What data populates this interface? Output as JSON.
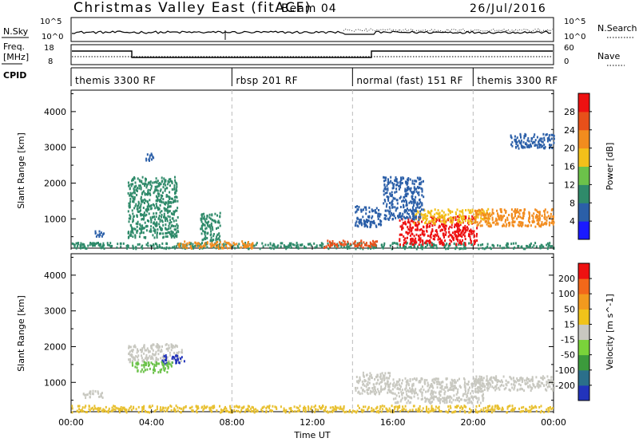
{
  "header": {
    "title": "Christmas Valley East (fitACF)",
    "beam": "Beam 04",
    "date": "26/Jul/2016"
  },
  "status_panels": {
    "nsky_label": "N.Sky",
    "nsky_ticks": [
      "10^5",
      "10^0"
    ],
    "nsearch_label": "N.Search",
    "nsearch_ticks": [
      "10^5",
      "10^0"
    ],
    "freq_label": "Freq.",
    "freq_unit": "[MHz]",
    "freq_ticks": [
      "18",
      "8"
    ],
    "nave_label": "Nave",
    "nave_ticks": [
      "60",
      "0"
    ],
    "cpid_label": "CPID",
    "cpid_segments": [
      {
        "label": "themis 3300 RF",
        "start_h": 0,
        "end_h": 8
      },
      {
        "label": "rbsp 201 RF",
        "start_h": 8,
        "end_h": 14
      },
      {
        "label": "normal (fast) 151 RF",
        "start_h": 14,
        "end_h": 20
      },
      {
        "label": "themis 3300 RF",
        "start_h": 20,
        "end_h": 24
      }
    ]
  },
  "chart_data": [
    {
      "type": "heatmap",
      "parameter": "Power",
      "xlabel": "",
      "ylabel": "Slant Range [km]",
      "colorbar_label": "Power [dB]",
      "colorbar_ticks": [
        4,
        8,
        12,
        16,
        20,
        24,
        28
      ],
      "colorbar_colors": [
        "#1a1aff",
        "#2b5fa8",
        "#2f8a6a",
        "#6cc24a",
        "#f3c01a",
        "#f28c1e",
        "#e8501a",
        "#ee1111"
      ],
      "xlim_h": [
        0,
        24
      ],
      "ylim": [
        180,
        4600
      ],
      "yticks": [
        1000,
        2000,
        3000,
        4000
      ],
      "mode_boundaries_h": [
        8,
        14,
        20
      ],
      "scatter_regions": [
        {
          "t0": 0.0,
          "t1": 24.0,
          "r0": 190,
          "r1": 360,
          "level": 2
        },
        {
          "t0": 5.3,
          "t1": 9.0,
          "r0": 200,
          "r1": 400,
          "level": 5
        },
        {
          "t0": 12.5,
          "t1": 15.2,
          "r0": 220,
          "r1": 420,
          "level": 6
        },
        {
          "t0": 14.1,
          "t1": 15.4,
          "r0": 800,
          "r1": 1400,
          "level": 1
        },
        {
          "t0": 1.0,
          "t1": 1.6,
          "r0": 520,
          "r1": 700,
          "level": 1
        },
        {
          "t0": 2.8,
          "t1": 5.3,
          "r0": 500,
          "r1": 2200,
          "level": 2
        },
        {
          "t0": 3.6,
          "t1": 4.1,
          "r0": 2650,
          "r1": 2850,
          "level": 1
        },
        {
          "t0": 6.4,
          "t1": 7.4,
          "r0": 400,
          "r1": 1200,
          "level": 2
        },
        {
          "t0": 16.3,
          "t1": 20.2,
          "r0": 300,
          "r1": 1100,
          "level": 7
        },
        {
          "t0": 17.0,
          "t1": 20.8,
          "r0": 900,
          "r1": 1300,
          "level": 4
        },
        {
          "t0": 20.0,
          "t1": 24.0,
          "r0": 800,
          "r1": 1300,
          "level": 5
        },
        {
          "t0": 21.8,
          "t1": 24.0,
          "r0": 3000,
          "r1": 3400,
          "level": 1
        },
        {
          "t0": 15.5,
          "t1": 17.5,
          "r0": 1000,
          "r1": 2200,
          "level": 1
        }
      ]
    },
    {
      "type": "heatmap",
      "parameter": "Velocity",
      "xlabel": "Time UT",
      "ylabel": "Slant Range [km]",
      "colorbar_label": "Velocity [m s^-1]",
      "colorbar_ticks": [
        200,
        100,
        50,
        15,
        -15,
        -50,
        -100,
        -200
      ],
      "colorbar_colors": [
        "#2233bb",
        "#2b6f8a",
        "#3c9a3c",
        "#7ad33a",
        "#c8c8c0",
        "#f0c31a",
        "#f29a1e",
        "#f2681a",
        "#ee1111"
      ],
      "xlim_h": [
        0,
        24
      ],
      "ylim": [
        180,
        4600
      ],
      "yticks": [
        1000,
        2000,
        3000,
        4000
      ],
      "xticks": [
        "00:00",
        "04:00",
        "08:00",
        "12:00",
        "16:00",
        "20:00",
        "00:00"
      ],
      "mode_boundaries_h": [
        8,
        14,
        20
      ],
      "scatter_regions": [
        {
          "t0": 0.0,
          "t1": 24.0,
          "r0": 190,
          "r1": 380,
          "cls": "lowpos"
        },
        {
          "t0": 0.5,
          "t1": 1.6,
          "r0": 600,
          "r1": 800,
          "cls": "gs"
        },
        {
          "t0": 2.8,
          "t1": 5.5,
          "r0": 1600,
          "r1": 2100,
          "cls": "gs"
        },
        {
          "t0": 4.5,
          "t1": 5.6,
          "r0": 1550,
          "r1": 1800,
          "cls": "away"
        },
        {
          "t0": 3.0,
          "t1": 5.0,
          "r0": 1300,
          "r1": 1600,
          "cls": "green"
        },
        {
          "t0": 16.0,
          "t1": 20.5,
          "r0": 450,
          "r1": 1150,
          "cls": "gs"
        },
        {
          "t0": 20.0,
          "t1": 24.0,
          "r0": 800,
          "r1": 1200,
          "cls": "gs"
        },
        {
          "t0": 14.1,
          "t1": 16.0,
          "r0": 700,
          "r1": 1300,
          "cls": "gs"
        }
      ]
    }
  ]
}
